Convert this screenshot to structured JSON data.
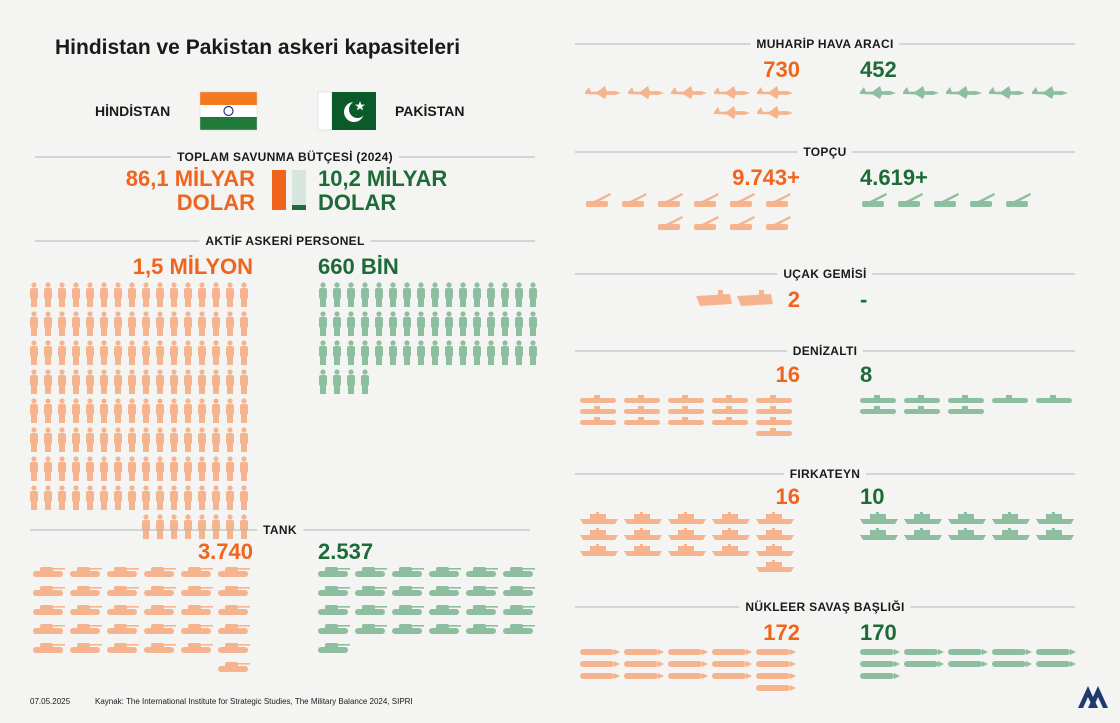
{
  "title": "Hindistan ve Pakistan askeri kapasiteleri",
  "countries": [
    "HİNDİSTAN",
    "PAKİSTAN"
  ],
  "budget": {
    "label": "TOPLAM SAVUNMA BÜTÇESİ (2024)",
    "india": "86,1 MİLYAR DOLAR",
    "pakistan": "10,2 MİLYAR DOLAR"
  },
  "personnel": {
    "label": "AKTİF ASKERİ PERSONEL",
    "india": "1,5 MİLYON",
    "pakistan": "660 BİN"
  },
  "tank": {
    "label": "TANK",
    "india": "3.740",
    "pakistan": "2.537"
  },
  "aircraft": {
    "label": "MUHARİP HAVA ARACI",
    "india": "730",
    "pakistan": "452"
  },
  "artillery": {
    "label": "TOPÇU",
    "india": "9.743+",
    "pakistan": "4.619+"
  },
  "carrier": {
    "label": "UÇAK GEMİSİ",
    "india": "2",
    "pakistan": "-"
  },
  "submarine": {
    "label": "DENİZALTI",
    "india": "16",
    "pakistan": "8"
  },
  "frigate": {
    "label": "FIRKATEYN",
    "india": "16",
    "pakistan": "10"
  },
  "nuclear": {
    "label": "NÜKLEER SAVAŞ BAŞLIĞI",
    "india": "172",
    "pakistan": "170"
  },
  "footer": {
    "date": "07.05.2025",
    "source": "Kaynak: The International Institute for Strategic Studies, The Military Balance 2024, SIPRI"
  }
}
